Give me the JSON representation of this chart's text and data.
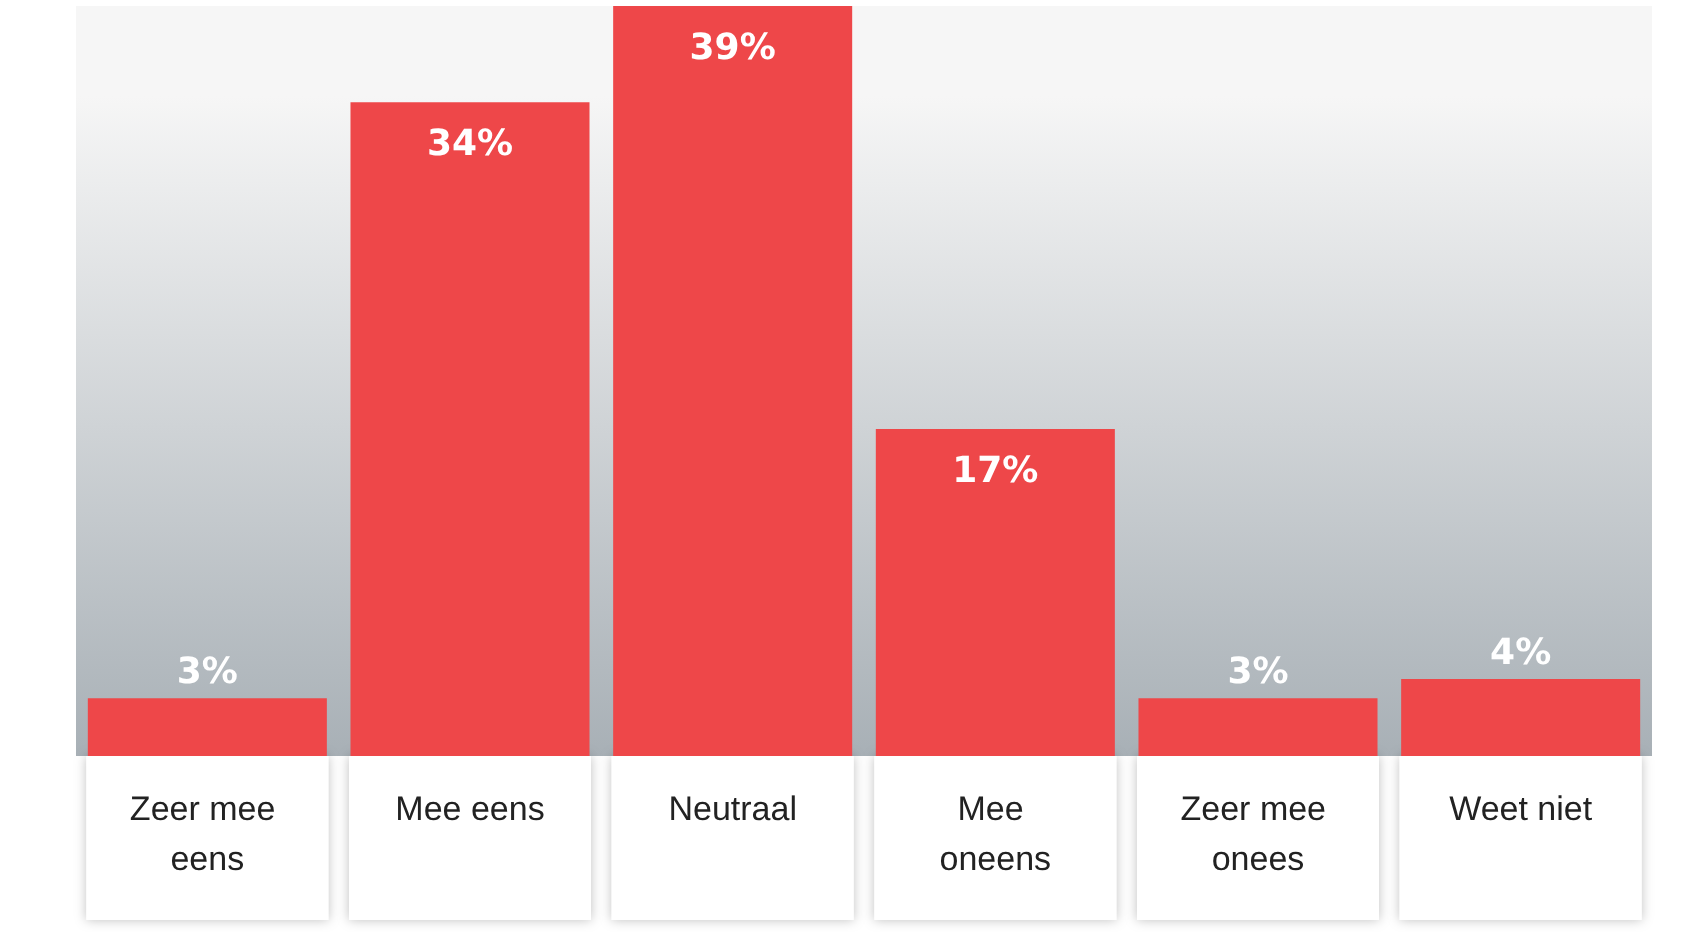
{
  "chart_data": {
    "type": "bar",
    "categories": [
      "Zeer mee eens",
      "Mee eens",
      "Neutraal",
      "Mee oneens",
      "Zeer mee onees",
      "Weet niet"
    ],
    "values": [
      3,
      34,
      39,
      17,
      3,
      4
    ],
    "value_labels": [
      "3%",
      "34%",
      "39%",
      "17%",
      "3%",
      "4%"
    ],
    "color": "#ee4749"
  }
}
